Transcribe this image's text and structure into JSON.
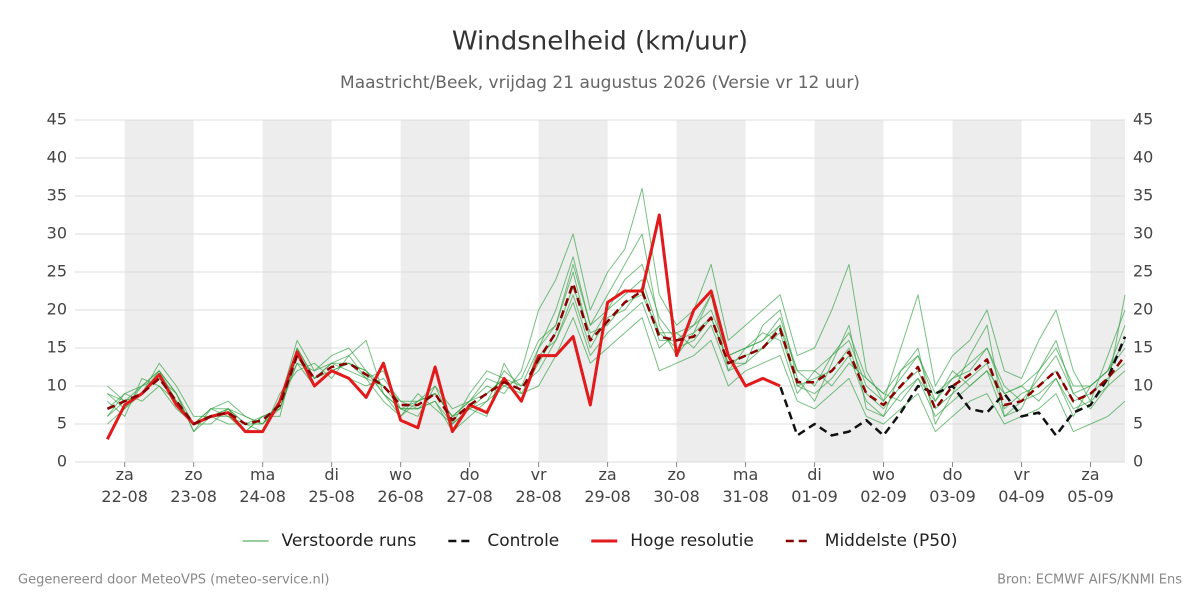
{
  "chart_data": {
    "type": "line",
    "title": "Windsnelheid (km/uur)",
    "subtitle": "Maastricht/Beek, vrijdag 21 augustus 2026 (Versie vr 12 uur)",
    "footer_left": "Gegenereerd door MeteoVPS (meteo-service.nl)",
    "footer_right": "Bron: ECMWF AIFS/KNMI Ens",
    "xlim": [
      -0.72,
      14.5
    ],
    "xticks": [
      {
        "value": 0,
        "label": "za 22-08"
      },
      {
        "value": 1,
        "label": "zo 23-08"
      },
      {
        "value": 2,
        "label": "ma 24-08"
      },
      {
        "value": 3,
        "label": "di 25-08"
      },
      {
        "value": 4,
        "label": "wo 26-08"
      },
      {
        "value": 5,
        "label": "do 27-08"
      },
      {
        "value": 6,
        "label": "vr 28-08"
      },
      {
        "value": 7,
        "label": "za 29-08"
      },
      {
        "value": 8,
        "label": "zo 30-08"
      },
      {
        "value": 9,
        "label": "ma 31-08"
      },
      {
        "value": 10,
        "label": "di 01-09"
      },
      {
        "value": 11,
        "label": "wo 02-09"
      },
      {
        "value": 12,
        "label": "do 03-09"
      },
      {
        "value": 13,
        "label": "vr 04-09"
      },
      {
        "value": 14,
        "label": "za 05-09"
      }
    ],
    "ylim": [
      0,
      45
    ],
    "yticks": [
      0,
      5,
      10,
      15,
      20,
      25,
      30,
      35,
      40,
      45
    ],
    "grid": true,
    "x": [
      -0.25,
      0,
      0.25,
      0.5,
      0.75,
      1,
      1.25,
      1.5,
      1.75,
      2,
      2.25,
      2.5,
      2.75,
      3,
      3.25,
      3.5,
      3.75,
      4,
      4.25,
      4.5,
      4.75,
      5,
      5.25,
      5.5,
      5.75,
      6,
      6.25,
      6.5,
      6.75,
      7,
      7.25,
      7.5,
      7.75,
      8,
      8.25,
      8.5,
      8.75,
      9,
      9.25,
      9.5,
      9.75,
      10,
      10.25,
      10.5,
      10.75,
      11,
      11.25,
      11.5,
      11.75,
      12,
      12.25,
      12.5,
      12.75,
      13,
      13.25,
      13.5,
      13.75,
      14,
      14.25,
      14.5
    ],
    "ensemble": {
      "name": "Verstoorde runs",
      "color": "#2e9e3e",
      "members": [
        [
          9,
          8,
          10,
          12,
          9,
          4,
          7,
          8,
          6,
          5,
          8,
          16,
          12,
          14,
          15,
          12,
          9,
          6,
          8,
          10,
          5,
          9,
          12,
          11,
          8,
          15,
          20,
          27,
          18,
          22,
          26,
          30,
          18,
          14,
          17,
          22,
          12,
          13,
          18,
          20,
          11,
          8,
          13,
          18,
          7,
          6,
          12,
          15,
          5,
          9,
          14,
          18,
          6,
          7,
          12,
          16,
          9,
          7,
          10,
          22
        ],
        [
          6,
          9,
          8,
          10,
          7,
          5,
          5,
          7,
          4,
          6,
          7,
          13,
          10,
          12,
          11,
          10,
          11,
          8,
          7,
          8,
          4,
          6,
          8,
          12,
          10,
          12,
          16,
          21,
          14,
          17,
          19,
          21,
          15,
          17,
          15,
          18,
          12,
          15,
          17,
          16,
          9,
          12,
          10,
          13,
          11,
          9,
          8,
          11,
          8,
          12,
          10,
          12,
          9,
          10,
          8,
          11,
          6,
          10,
          12,
          15
        ],
        [
          5,
          7,
          9,
          13,
          10,
          6,
          6,
          5,
          5,
          4,
          9,
          12,
          13,
          11,
          14,
          16,
          9,
          7,
          6,
          10,
          7,
          8,
          10,
          9,
          12,
          20,
          24,
          30,
          20,
          25,
          28,
          36,
          22,
          18,
          20,
          26,
          16,
          18,
          20,
          22,
          14,
          15,
          20,
          26,
          12,
          8,
          15,
          22,
          10,
          14,
          16,
          20,
          12,
          11,
          16,
          20,
          12,
          8,
          14,
          20
        ],
        [
          8,
          6,
          11,
          10,
          8,
          5,
          7,
          6,
          5,
          6,
          6,
          15,
          11,
          13,
          12,
          11,
          8,
          6,
          9,
          7,
          5,
          7,
          6,
          13,
          9,
          10,
          14,
          19,
          13,
          15,
          17,
          19,
          12,
          13,
          14,
          16,
          10,
          12,
          13,
          14,
          8,
          7,
          9,
          11,
          6,
          5,
          7,
          9,
          4,
          6,
          8,
          9,
          5,
          6,
          7,
          9,
          4,
          5,
          6,
          8
        ],
        [
          7,
          9,
          10,
          11,
          9,
          4,
          6,
          7,
          6,
          5,
          7,
          14,
          10,
          12,
          13,
          12,
          10,
          8,
          8,
          9,
          6,
          8,
          11,
          10,
          11,
          16,
          18,
          26,
          18,
          20,
          24,
          26,
          19,
          16,
          18,
          22,
          14,
          15,
          16,
          19,
          12,
          10,
          14,
          16,
          10,
          8,
          11,
          14,
          8,
          11,
          12,
          15,
          10,
          8,
          11,
          14,
          9,
          10,
          12,
          16
        ],
        [
          10,
          8,
          9,
          12,
          8,
          5,
          6,
          7,
          5,
          5,
          8,
          13,
          12,
          13,
          14,
          11,
          12,
          7,
          7,
          9,
          6,
          7,
          9,
          11,
          8,
          14,
          16,
          22,
          15,
          19,
          20,
          23,
          16,
          16,
          17,
          19,
          13,
          14,
          15,
          18,
          10,
          11,
          12,
          15,
          9,
          7,
          10,
          12,
          7,
          9,
          11,
          13,
          7,
          9,
          10,
          12,
          8,
          9,
          11,
          13
        ],
        [
          6,
          8,
          9,
          11,
          8,
          5,
          6,
          6,
          4,
          6,
          7,
          14,
          11,
          12,
          13,
          11,
          10,
          7,
          7,
          8,
          5,
          7,
          8,
          10,
          9,
          13,
          17,
          23,
          17,
          18,
          21,
          22,
          17,
          15,
          16,
          19,
          13,
          13,
          15,
          17,
          10,
          9,
          11,
          14,
          8,
          6,
          9,
          11,
          6,
          8,
          10,
          12,
          6,
          8,
          9,
          11,
          7,
          8,
          10,
          12
        ],
        [
          9,
          7,
          10,
          12,
          9,
          5,
          7,
          7,
          5,
          5,
          8,
          15,
          11,
          13,
          13,
          12,
          9,
          7,
          8,
          9,
          6,
          8,
          9,
          11,
          10,
          15,
          18,
          25,
          16,
          20,
          22,
          24,
          17,
          17,
          18,
          20,
          14,
          15,
          16,
          18,
          12,
          12,
          14,
          17,
          11,
          9,
          12,
          14,
          9,
          11,
          13,
          15,
          9,
          10,
          12,
          15,
          10,
          10,
          12,
          18
        ]
      ]
    },
    "series": [
      {
        "name": "Controle",
        "color": "#111111",
        "style": "dashed",
        "values": [
          3,
          7.5,
          9,
          11.5,
          7.5,
          5,
          6,
          6.5,
          4,
          4,
          8,
          14.5,
          10,
          12,
          11,
          8.5,
          13,
          5.5,
          4.5,
          12.5,
          4,
          7.5,
          6.5,
          11,
          8,
          14,
          14,
          16.5,
          7.5,
          21,
          22.5,
          22.5,
          32.5,
          14,
          20,
          22.5,
          14,
          10,
          11,
          10,
          3.5,
          5,
          3.5,
          4,
          5.5,
          3.5,
          6.5,
          10,
          9,
          10,
          7,
          6.5,
          9,
          6,
          6.5,
          3.5,
          6.5,
          7.5,
          11,
          16.5
        ]
      },
      {
        "name": "Hoge resolutie",
        "color": "#e31a1c",
        "style": "solid",
        "values": [
          3,
          7.5,
          9,
          11.5,
          7.5,
          5,
          6,
          6.5,
          4,
          4,
          8,
          14.5,
          10,
          12,
          11,
          8.5,
          13,
          5.5,
          4.5,
          12.5,
          4,
          7.5,
          6.5,
          11,
          8,
          14,
          14,
          16.5,
          7.5,
          21,
          22.5,
          22.5,
          32.5,
          14,
          20,
          22.5,
          14,
          10,
          11,
          10,
          null,
          null,
          null,
          null,
          null,
          null,
          null,
          null,
          null,
          null,
          null,
          null,
          null,
          null,
          null,
          null,
          null,
          null,
          null,
          null
        ]
      },
      {
        "name": "Middelste (P50)",
        "color": "#8b0000",
        "style": "dashed",
        "values": [
          7,
          8,
          9,
          11,
          8,
          5,
          6,
          6.5,
          5,
          5.5,
          7.5,
          14,
          11,
          12.5,
          13,
          11.5,
          10,
          7.5,
          7.5,
          9,
          5.5,
          7.5,
          9,
          10.5,
          9.5,
          13.5,
          17,
          23.5,
          16,
          18.5,
          21,
          22.5,
          16.5,
          16,
          16.5,
          19,
          13,
          14,
          15,
          17.5,
          10.5,
          10.5,
          12,
          14.5,
          9,
          7.5,
          10,
          12.5,
          7,
          10,
          11.5,
          13.5,
          7.5,
          8,
          10,
          12,
          8,
          9,
          11,
          14
        ]
      }
    ]
  }
}
